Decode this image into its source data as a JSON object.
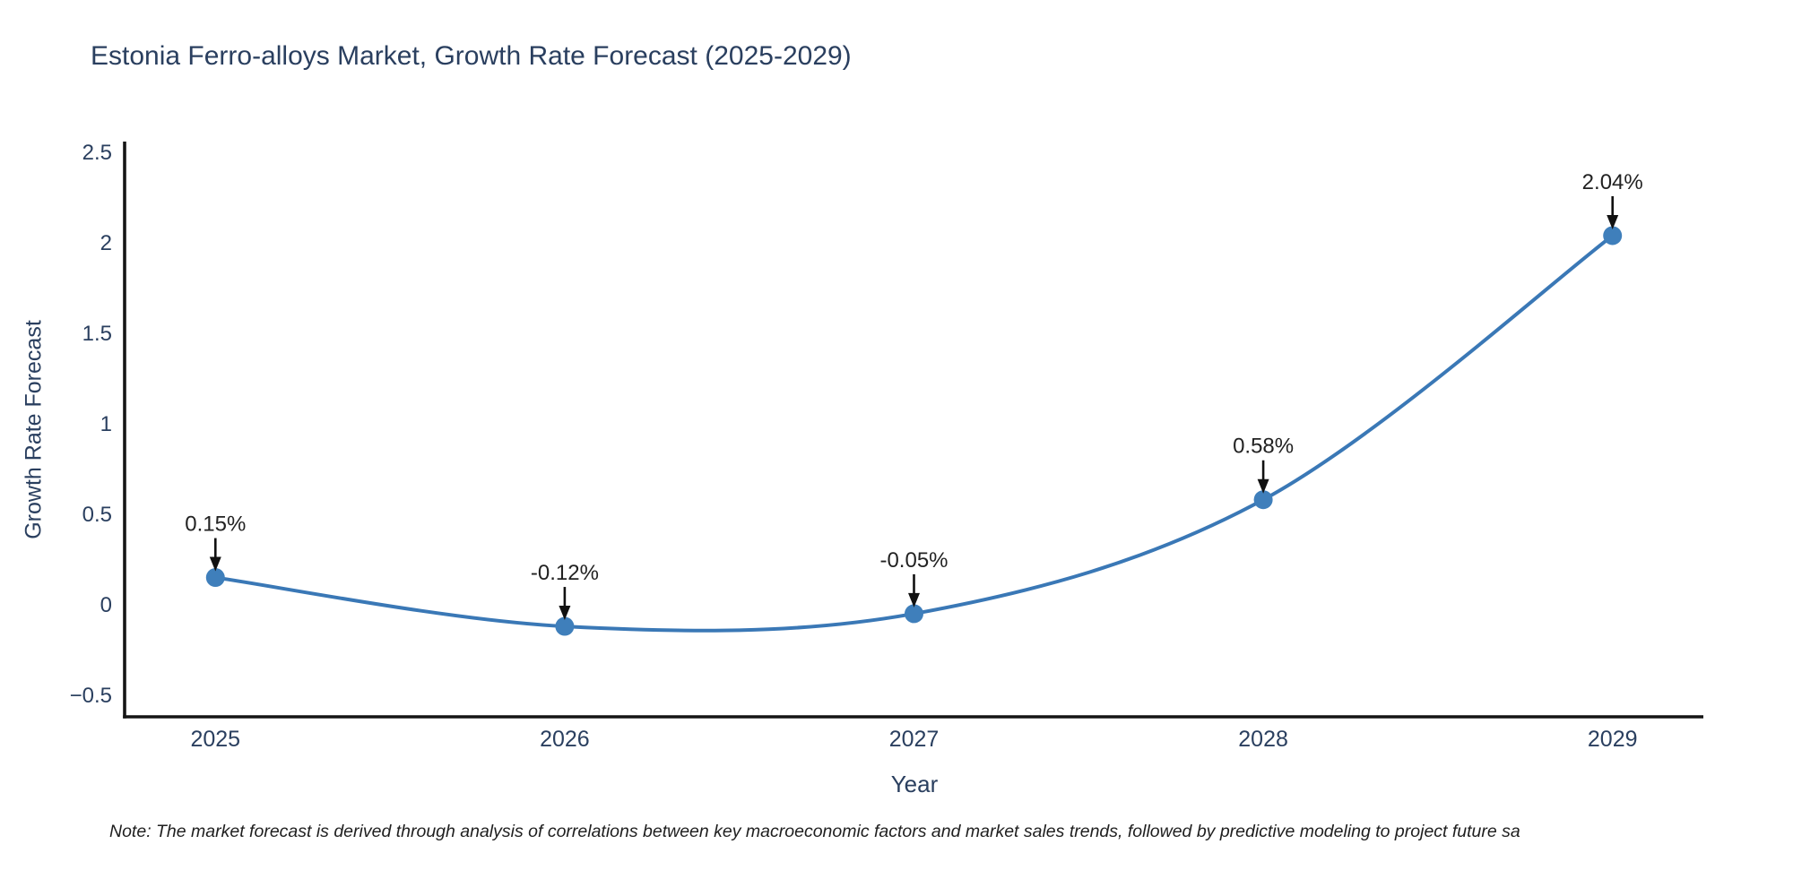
{
  "chart_data": {
    "type": "line",
    "title": "Estonia Ferro-alloys Market, Growth Rate Forecast (2025-2029)",
    "xlabel": "Year",
    "ylabel": "Growth Rate Forecast",
    "x": [
      2025,
      2026,
      2027,
      2028,
      2029
    ],
    "values": [
      0.15,
      -0.12,
      -0.05,
      0.58,
      2.04
    ],
    "point_labels": [
      "0.15%",
      "-0.12%",
      "-0.05%",
      "0.58%",
      "2.04%"
    ],
    "x_tick_labels": [
      "2025",
      "2026",
      "2027",
      "2028",
      "2029"
    ],
    "y_ticks": [
      2.5,
      2,
      1.5,
      1,
      0.5,
      0,
      -0.5
    ],
    "y_tick_labels": [
      "2.5",
      "2",
      "1.5",
      "1",
      "0.5",
      "0",
      "−0.5"
    ],
    "xlim": [
      2024.74,
      2029.26
    ],
    "ylim": [
      -0.62,
      2.56
    ],
    "line_shape": "spline",
    "grid": false,
    "legend": "none",
    "note": "Note: The market forecast is derived through analysis of correlations between key macroeconomic factors and market sales trends, followed by predictive modeling to project future sa",
    "colors": {
      "line": "#3a78b6",
      "marker": "#3f7fbb",
      "arrow": "#111111",
      "annotation_text": "#222222",
      "axis": "#151515",
      "tick_text": "#2a3f5f",
      "title_text": "#2a3f5f",
      "note_text": "#1f1f1f",
      "background": "#ffffff"
    }
  }
}
